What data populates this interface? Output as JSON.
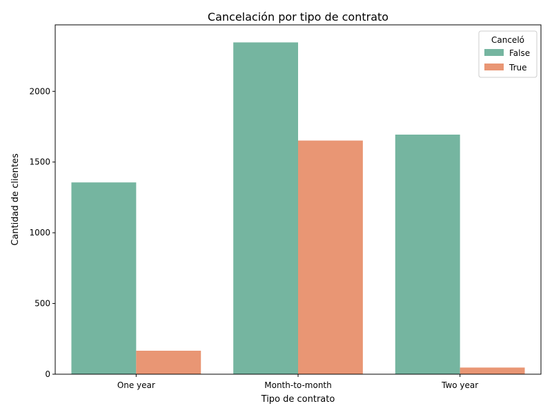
{
  "chart_data": {
    "type": "bar",
    "title": "Cancelación por tipo de contrato",
    "xlabel": "Tipo de contrato",
    "ylabel": "Cantidad de clientes",
    "categories": [
      "One year",
      "Month-to-month",
      "Two year"
    ],
    "series": [
      {
        "name": "False",
        "values": [
          1356,
          2346,
          1694
        ]
      },
      {
        "name": "True",
        "values": [
          166,
          1652,
          47
        ]
      }
    ],
    "ylim": [
      0,
      2470
    ],
    "yticks": [
      0,
      500,
      1000,
      1500,
      2000
    ],
    "grid": false,
    "legend": {
      "title": "Canceló",
      "position": "top-right"
    },
    "colors": {
      "False": "#75b5a0",
      "True": "#e99674"
    }
  }
}
